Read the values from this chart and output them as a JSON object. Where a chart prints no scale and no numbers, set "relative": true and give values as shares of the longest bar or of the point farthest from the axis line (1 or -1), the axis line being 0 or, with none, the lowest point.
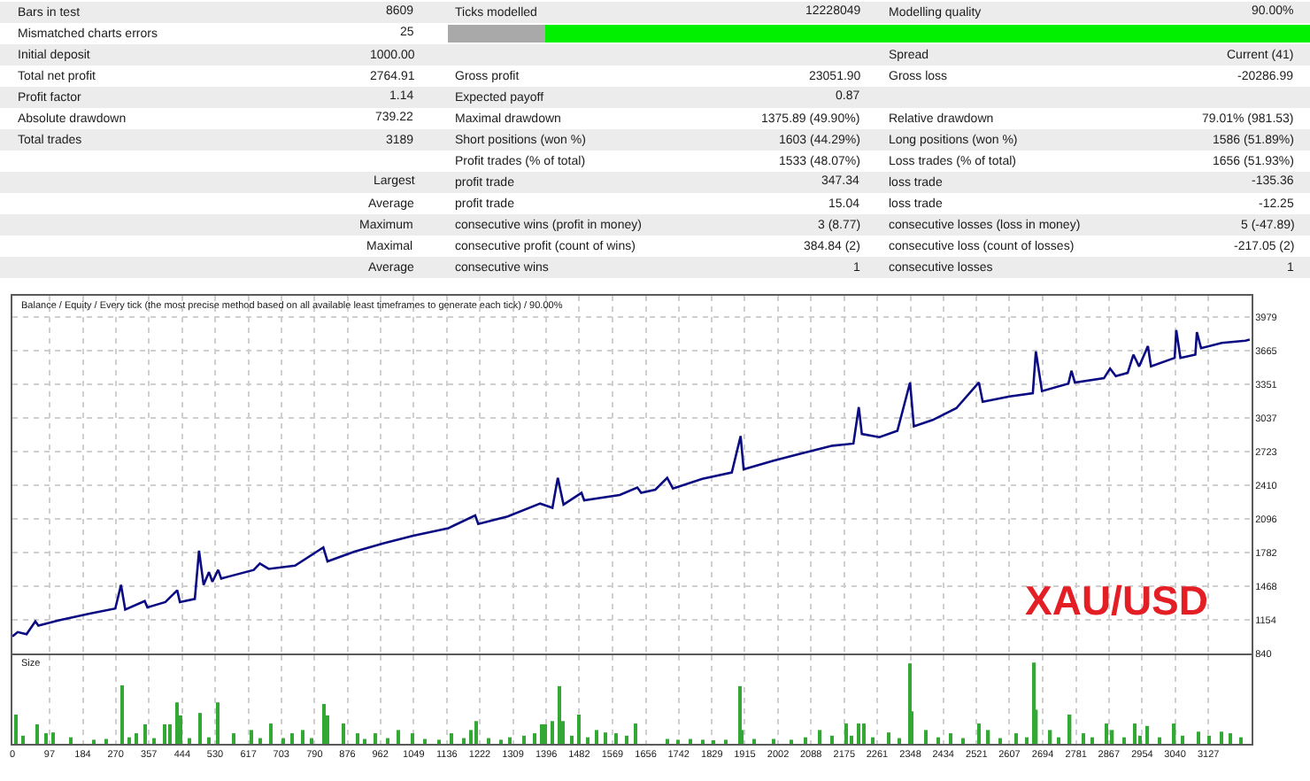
{
  "chart_data": [
    {
      "type": "other",
      "cells": [
        [
          "Bars in test",
          "8609",
          "Ticks modelled",
          "12228049",
          "Modelling quality",
          "90.00%"
        ],
        [
          "Mismatched charts errors",
          "25",
          null,
          null,
          null,
          null
        ],
        [
          "Initial deposit",
          "1000.00",
          null,
          null,
          "Spread",
          "Current (41)"
        ],
        [
          "Total net profit",
          "2764.91",
          "Gross profit",
          "23051.90",
          "Gross loss",
          "-20286.99"
        ],
        [
          "Profit factor",
          "1.14",
          "Expected payoff",
          "0.87",
          null,
          null
        ],
        [
          "Absolute drawdown",
          "739.22",
          "Maximal drawdown",
          "1375.89 (49.90%)",
          "Relative drawdown",
          "79.01% (981.53)"
        ],
        [
          "Total trades",
          "3189",
          "Short positions (won %)",
          "1603 (44.29%)",
          "Long positions (won %)",
          "1586 (51.89%)"
        ],
        [
          null,
          null,
          "Profit trades (% of total)",
          "1533 (48.07%)",
          "Loss trades (% of total)",
          "1656 (51.93%)"
        ],
        [
          null,
          "Largest",
          "profit trade",
          "347.34",
          "loss trade",
          "-135.36"
        ],
        [
          null,
          "Average",
          "profit trade",
          "15.04",
          "loss trade",
          "-12.25"
        ],
        [
          null,
          "Maximum",
          "consecutive wins (profit in money)",
          "3 (8.77)",
          "consecutive losses (loss in money)",
          "5 (-47.89)"
        ],
        [
          null,
          "Maximal",
          "consecutive profit (count of wins)",
          "384.84 (2)",
          "consecutive loss (count of losses)",
          "-217.05 (2)"
        ],
        [
          null,
          "Average",
          "consecutive wins",
          "1",
          "consecutive losses",
          "1"
        ]
      ]
    },
    {
      "type": "line",
      "title": "Balance / Equity / Every tick (the most precise method based on all available least timeframes to generate each tick) / 90.00%",
      "x": [
        0,
        14,
        37,
        60,
        68,
        122,
        199,
        269,
        284,
        295,
        346,
        353,
        400,
        431,
        438,
        477,
        488,
        500,
        514,
        523,
        538,
        546,
        631,
        647,
        670,
        739,
        813,
        824,
        894,
        971,
        1048,
        1140,
        1210,
        1218,
        1295,
        1380,
        1412,
        1426,
        1441,
        1488,
        1495,
        1588,
        1634,
        1644,
        1681,
        1712,
        1727,
        1804,
        1881,
        1904,
        1912,
        1990,
        2066,
        2144,
        2199,
        2213,
        2221,
        2267,
        2314,
        2347,
        2357,
        2406,
        2468,
        2527,
        2537,
        2607,
        2668,
        2676,
        2692,
        2761,
        2769,
        2778,
        2854,
        2870,
        2885,
        2916,
        2931,
        2946,
        2969,
        2977,
        3039,
        3043,
        3054,
        3093,
        3097,
        3108,
        3162,
        3224,
        3235
      ],
      "color": "#0a0a82",
      "values": [
        1000,
        1040,
        1020,
        1140,
        1100,
        1150,
        1210,
        1260,
        1480,
        1250,
        1330,
        1270,
        1320,
        1430,
        1320,
        1350,
        1800,
        1480,
        1600,
        1510,
        1620,
        1540,
        1620,
        1680,
        1630,
        1660,
        1830,
        1700,
        1790,
        1870,
        1940,
        2010,
        2130,
        2050,
        2120,
        2240,
        2200,
        2480,
        2230,
        2340,
        2270,
        2320,
        2390,
        2340,
        2370,
        2480,
        2380,
        2470,
        2530,
        2870,
        2560,
        2640,
        2710,
        2780,
        2800,
        3140,
        2890,
        2860,
        2920,
        3370,
        2960,
        3020,
        3130,
        3370,
        3190,
        3240,
        3270,
        3660,
        3290,
        3360,
        3480,
        3370,
        3410,
        3500,
        3430,
        3460,
        3630,
        3520,
        3710,
        3520,
        3600,
        3860,
        3600,
        3630,
        3840,
        3690,
        3740,
        3760,
        3770
      ],
      "xlim": [
        0,
        3240
      ],
      "xticks": [
        0,
        97,
        184,
        270,
        357,
        444,
        530,
        617,
        703,
        790,
        876,
        962,
        1049,
        1136,
        1222,
        1309,
        1396,
        1482,
        1569,
        1656,
        1742,
        1829,
        1915,
        2002,
        2088,
        2175,
        2261,
        2348,
        2434,
        2521,
        2607,
        2694,
        2781,
        2867,
        2954,
        3040,
        3127
      ],
      "ylim": [
        840,
        4180
      ],
      "yticks": [
        840,
        1154,
        1468,
        1782,
        2096,
        2410,
        2723,
        3037,
        3351,
        3665,
        3979
      ],
      "grid": true,
      "tick_labels": "y",
      "annotations": [
        "XAU/USD"
      ]
    },
    {
      "type": "bar",
      "title": "Size",
      "relative": true,
      "color": "#34a834",
      "x": [
        11,
        28,
        63,
        87,
        106,
        153,
        213,
        245,
        288,
        306,
        325,
        346,
        370,
        397,
        411,
        431,
        438,
        463,
        492,
        514,
        538,
        577,
        624,
        648,
        677,
        708,
        732,
        758,
        782,
        813,
        824,
        866,
        901,
        921,
        951,
        982,
        1011,
        1048,
        1079,
        1116,
        1148,
        1181,
        1198,
        1214,
        1245,
        1278,
        1302,
        1338,
        1366,
        1384,
        1395,
        1411,
        1431,
        1441,
        1463,
        1483,
        1505,
        1527,
        1550,
        1580,
        1607,
        1631,
        1712,
        1741,
        1773,
        1806,
        1835,
        1866,
        1902,
        1909,
        1940,
        1990,
        2037,
        2074,
        2113,
        2144,
        2179,
        2195,
        2213,
        2228,
        2250,
        2290,
        2320,
        2347,
        2353,
        2388,
        2421,
        2452,
        2486,
        2529,
        2553,
        2584,
        2625,
        2653,
        2673,
        2678,
        2715,
        2736,
        2766,
        2800,
        2824,
        2861,
        2877,
        2908,
        2934,
        2949,
        2969,
        3000,
        3039,
        3060,
        3101,
        3130,
        3162,
        3185,
        3213
      ],
      "values": [
        0.36,
        0.1,
        0.24,
        0.13,
        0.14,
        0.08,
        0.05,
        0.06,
        0.72,
        0.08,
        0.13,
        0.24,
        0.07,
        0.24,
        0.24,
        0.51,
        0.35,
        0.07,
        0.38,
        0.08,
        0.51,
        0.13,
        0.17,
        0.07,
        0.25,
        0.07,
        0.13,
        0.17,
        0.07,
        0.49,
        0.35,
        0.25,
        0.13,
        0.06,
        0.13,
        0.07,
        0.17,
        0.13,
        0.06,
        0.05,
        0.13,
        0.07,
        0.17,
        0.28,
        0.07,
        0.05,
        0.08,
        0.1,
        0.13,
        0.24,
        0.24,
        0.28,
        0.71,
        0.28,
        0.1,
        0.36,
        0.08,
        0.17,
        0.14,
        0.13,
        0.1,
        0.25,
        0.06,
        0.05,
        0.06,
        0.05,
        0.04,
        0.05,
        0.71,
        0.17,
        0.06,
        0.06,
        0.05,
        0.08,
        0.17,
        0.1,
        0.25,
        0.1,
        0.25,
        0.25,
        0.08,
        0.14,
        0.07,
        0.99,
        0.4,
        0.17,
        0.08,
        0.13,
        0.07,
        0.25,
        0.17,
        0.07,
        0.13,
        0.08,
        1,
        0.42,
        0.17,
        0.08,
        0.36,
        0.13,
        0.08,
        0.25,
        0.17,
        0.08,
        0.25,
        0.1,
        0.22,
        0.08,
        0.25,
        0.1,
        0.15,
        0.1,
        0.15,
        0.13,
        0.08
      ],
      "xlim": [
        0,
        3240
      ],
      "xticks": [
        0,
        97,
        184,
        270,
        357,
        444,
        530,
        617,
        703,
        790,
        876,
        962,
        1049,
        1136,
        1222,
        1309,
        1396,
        1482,
        1569,
        1656,
        1742,
        1829,
        1915,
        2002,
        2088,
        2175,
        2261,
        2348,
        2434,
        2521,
        2607,
        2694,
        2781,
        2867,
        2954,
        3040,
        3127
      ],
      "grid": "x",
      "tick_labels": "x"
    }
  ]
}
